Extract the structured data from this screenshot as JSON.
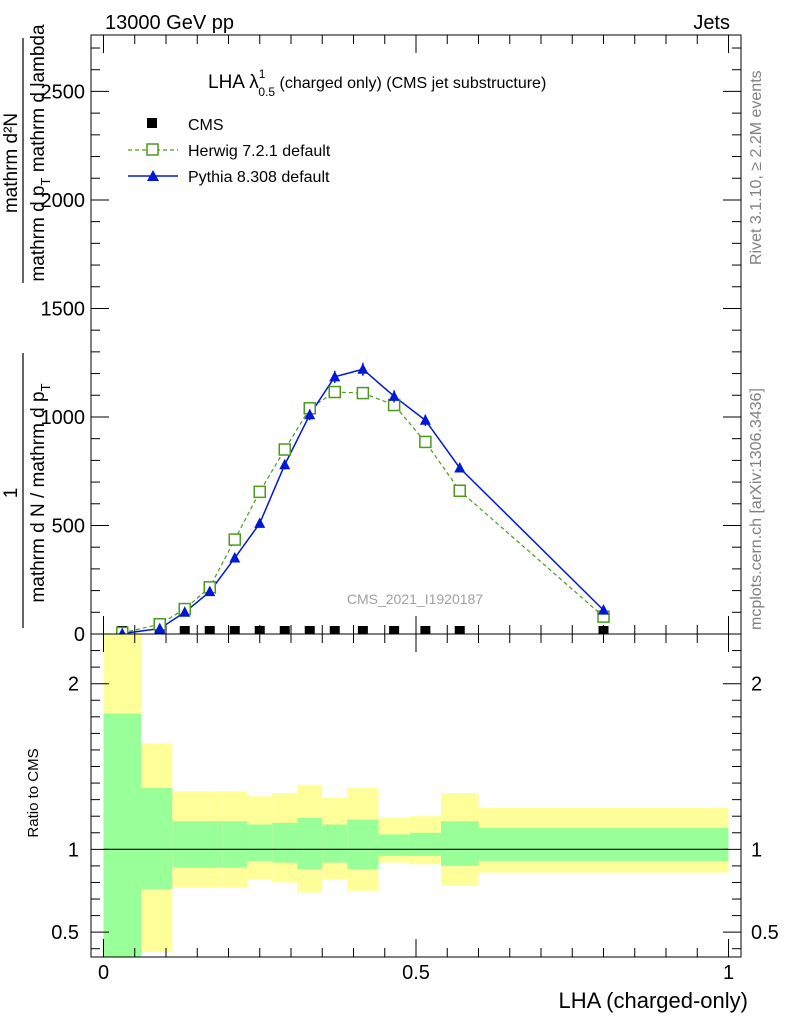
{
  "header": {
    "left": "13000 GeV pp",
    "right": "Jets"
  },
  "side_labels": {
    "rivet": "Rivet 3.1.10, ≥ 2.2M events",
    "mcplots": "mcplots.cern.ch [arXiv:1306.3436]"
  },
  "chart_data": [
    {
      "type": "line",
      "title_main": "LHA λ",
      "title_sup": "1",
      "title_sub": "0.5",
      "title_rest": " (charged only) (CMS jet substructure)",
      "ylabel_top": "1",
      "ylabel_top_num": "mathrm d²N",
      "ylabel_top_den": "mathrm d p",
      "ylabel_top_den_sub": "T",
      "ylabel_top_den_rest": " mathrm d lambda",
      "ylabel_bottom": "mathrm d N / mathrm d p",
      "ylabel_bottom_sub": "T",
      "xlabel": "LHA (charged-only)",
      "watermark": "CMS_2021_I1920187",
      "xlim": [
        -0.02,
        1.02
      ],
      "ylim": [
        0,
        2760
      ],
      "yticks": [
        0,
        500,
        1000,
        1500,
        2000,
        2500
      ],
      "ytick_labels": [
        "0",
        "500",
        "1000",
        "1500",
        "2000",
        "2500"
      ],
      "legend_position": "top-left",
      "series": [
        {
          "name": "CMS",
          "color": "#000000",
          "marker": "square",
          "x": [
            0.03,
            0.09,
            0.13,
            0.17,
            0.21,
            0.25,
            0.29,
            0.33,
            0.37,
            0.415,
            0.465,
            0.515,
            0.57,
            0.8
          ],
          "y": [
            0,
            0,
            0,
            0,
            0,
            0,
            0,
            0,
            0,
            0,
            0,
            0,
            0,
            0
          ]
        },
        {
          "name": "Herwig 7.2.1 default",
          "color": "#4a9a1e",
          "marker": "open-square",
          "x": [
            0.03,
            0.09,
            0.13,
            0.17,
            0.21,
            0.25,
            0.29,
            0.33,
            0.37,
            0.415,
            0.465,
            0.515,
            0.57,
            0.8
          ],
          "y": [
            5,
            45,
            115,
            215,
            435,
            655,
            850,
            1040,
            1115,
            1110,
            1055,
            885,
            660,
            80
          ]
        },
        {
          "name": "Pythia 8.308 default",
          "color": "#0018d6",
          "marker": "triangle",
          "x": [
            0.03,
            0.09,
            0.13,
            0.17,
            0.21,
            0.25,
            0.29,
            0.33,
            0.37,
            0.415,
            0.465,
            0.515,
            0.57,
            0.8
          ],
          "y": [
            2,
            25,
            100,
            195,
            350,
            510,
            780,
            1010,
            1185,
            1220,
            1095,
            985,
            765,
            110
          ],
          "yerr": [
            1,
            4,
            8,
            10,
            12,
            15,
            22,
            25,
            28,
            30,
            28,
            26,
            20,
            8
          ]
        }
      ]
    },
    {
      "type": "bar",
      "ylabel": "Ratio to CMS",
      "xlim": [
        -0.02,
        1.02
      ],
      "ylim": [
        0.35,
        2.3
      ],
      "yticks": [
        0.5,
        1,
        2
      ],
      "ytick_labels": [
        "0.5",
        "1",
        "2"
      ],
      "xticks": [
        0,
        0.5,
        1
      ],
      "xtick_labels": [
        "0",
        "0.5",
        "1"
      ],
      "reference_line": 1,
      "bin_edges": [
        0,
        0.06,
        0.11,
        0.19,
        0.23,
        0.27,
        0.31,
        0.35,
        0.39,
        0.44,
        0.49,
        0.54,
        0.6,
        1.0
      ],
      "band_outer": {
        "color": "#ffff99",
        "low": [
          0.3,
          0.38,
          0.77,
          0.77,
          0.82,
          0.8,
          0.74,
          0.82,
          0.75,
          0.92,
          0.91,
          0.78,
          0.86,
          0.87
        ],
        "high": [
          2.3,
          1.64,
          1.35,
          1.35,
          1.32,
          1.34,
          1.39,
          1.31,
          1.37,
          1.19,
          1.2,
          1.34,
          1.25,
          1.23
        ]
      },
      "band_inner": {
        "color": "#99ff99",
        "low": [
          0.3,
          0.76,
          0.89,
          0.89,
          0.93,
          0.92,
          0.88,
          0.92,
          0.88,
          0.96,
          0.96,
          0.9,
          0.93,
          0.94
        ],
        "high": [
          1.82,
          1.37,
          1.17,
          1.17,
          1.15,
          1.16,
          1.19,
          1.15,
          1.18,
          1.09,
          1.1,
          1.17,
          1.13,
          1.12
        ]
      }
    }
  ]
}
